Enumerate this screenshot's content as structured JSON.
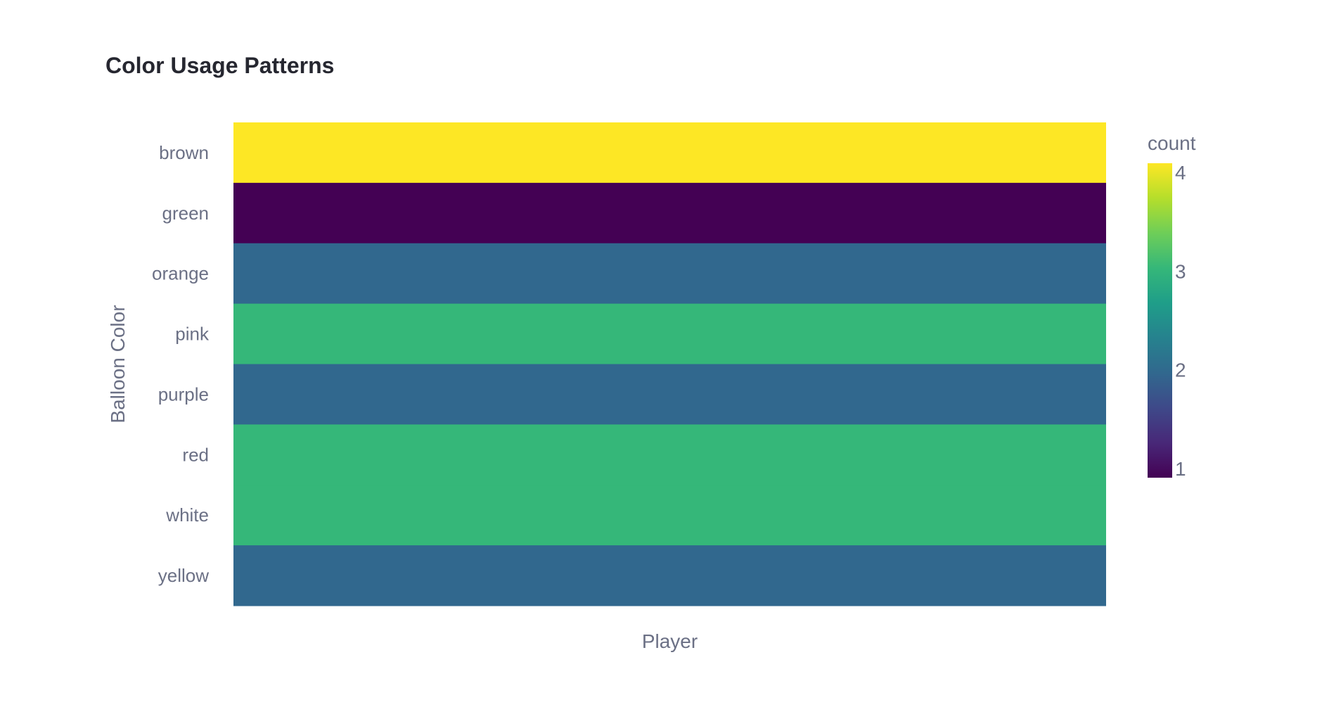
{
  "chart_data": {
    "type": "heatmap",
    "title": "Color Usage Patterns",
    "xlabel": "Player",
    "ylabel": "Balloon Color",
    "categories": [
      "brown",
      "green",
      "orange",
      "pink",
      "purple",
      "red",
      "white",
      "yellow"
    ],
    "values": [
      4,
      1,
      2,
      3,
      2,
      3,
      3,
      2
    ],
    "colorbar": {
      "title": "count",
      "range": [
        1,
        4
      ],
      "ticks": [
        1,
        2,
        3,
        4
      ],
      "colorscale": "viridis"
    },
    "grid": false,
    "legend_position": "right"
  },
  "colors": {
    "viridis": [
      "#440154",
      "#482878",
      "#3e4989",
      "#31688e",
      "#26828e",
      "#1f9e89",
      "#35b779",
      "#6ece58",
      "#b5de2b",
      "#fde725"
    ],
    "text": "#262730",
    "axis_text": "#6b7085"
  }
}
